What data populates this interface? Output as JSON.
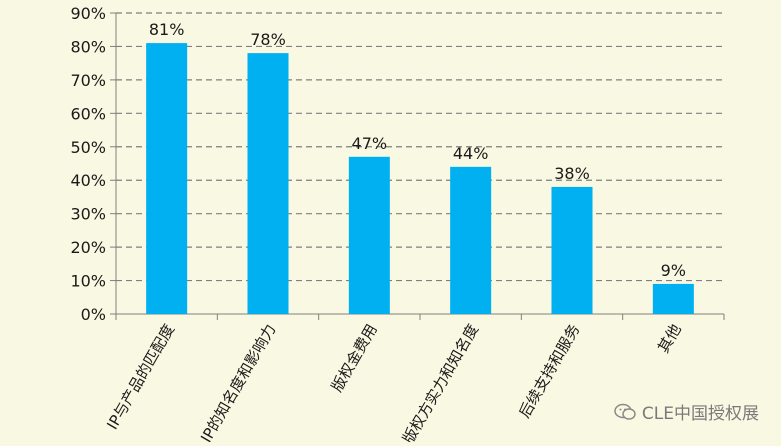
{
  "chart_data": {
    "type": "bar",
    "categories": [
      "IP与产品的匹配度",
      "IP的知名度和影响力",
      "版权金费用",
      "版权方实力和知名度",
      "后续支持和服务",
      "其他"
    ],
    "values": [
      81,
      78,
      47,
      44,
      38,
      9
    ],
    "data_labels": [
      "81%",
      "78%",
      "47%",
      "44%",
      "38%",
      "9%"
    ],
    "yticks": [
      "0%",
      "10%",
      "20%",
      "30%",
      "40%",
      "50%",
      "60%",
      "70%",
      "80%",
      "90%"
    ],
    "ylim": [
      0,
      90
    ],
    "grid": true,
    "bar_color": "#00b0f0",
    "grid_color": "#7f7f7f"
  },
  "watermark": {
    "text": "CLE中国授权展",
    "icon": "wechat-icon"
  }
}
